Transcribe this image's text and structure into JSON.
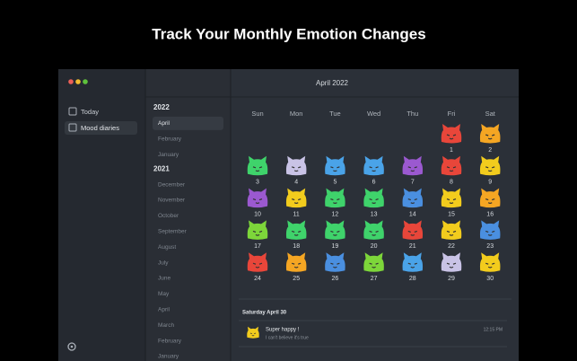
{
  "header": {
    "title": "Track Your Monthly Emotion Changes"
  },
  "sidebar": {
    "items": [
      "Today",
      "Mood diaries"
    ]
  },
  "months": {
    "groups": [
      {
        "year": "2022",
        "months": [
          "April",
          "February",
          "January"
        ]
      },
      {
        "year": "2021",
        "months": [
          "December",
          "November",
          "October",
          "September",
          "August",
          "July",
          "June",
          "May",
          "April",
          "March",
          "February",
          "January"
        ]
      }
    ]
  },
  "calendar": {
    "title": "April 2022",
    "weekdays": [
      "Sun",
      "Mon",
      "Tue",
      "Wed",
      "Thu",
      "Fri",
      "Sat"
    ],
    "days": [
      {
        "day": 1,
        "color": "#e8463a"
      },
      {
        "day": 2,
        "color": "#f5a623"
      },
      {
        "day": 3,
        "color": "#3fd36b"
      },
      {
        "day": 4,
        "color": "#c9c3e6"
      },
      {
        "day": 5,
        "color": "#4aa3e8"
      },
      {
        "day": 6,
        "color": "#4aa3e8"
      },
      {
        "day": 7,
        "color": "#9b59d0"
      },
      {
        "day": 8,
        "color": "#e8463a"
      },
      {
        "day": 9,
        "color": "#f2cc1d"
      },
      {
        "day": 10,
        "color": "#9b59d0"
      },
      {
        "day": 11,
        "color": "#f2cc1d"
      },
      {
        "day": 12,
        "color": "#3fd36b"
      },
      {
        "day": 13,
        "color": "#3fd36b"
      },
      {
        "day": 14,
        "color": "#4a8fe0"
      },
      {
        "day": 15,
        "color": "#f2cc1d"
      },
      {
        "day": 16,
        "color": "#f5a623"
      },
      {
        "day": 17,
        "color": "#7dd63a"
      },
      {
        "day": 18,
        "color": "#3fd36b"
      },
      {
        "day": 19,
        "color": "#3fd36b"
      },
      {
        "day": 20,
        "color": "#3fd36b"
      },
      {
        "day": 21,
        "color": "#e8463a"
      },
      {
        "day": 22,
        "color": "#f2cc1d"
      },
      {
        "day": 23,
        "color": "#4a8fe0"
      },
      {
        "day": 24,
        "color": "#e8463a"
      },
      {
        "day": 25,
        "color": "#f5a623"
      },
      {
        "day": 26,
        "color": "#4a8fe0"
      },
      {
        "day": 27,
        "color": "#7dd63a"
      },
      {
        "day": 28,
        "color": "#4aa3e8"
      },
      {
        "day": 29,
        "color": "#c9c3e6"
      },
      {
        "day": 30,
        "color": "#f2cc1d"
      }
    ]
  },
  "entries": {
    "date": "Saturday April 30",
    "items": [
      {
        "mood": "Super happy !",
        "note": "I can't believe it's true",
        "time": "12:15 PM",
        "color": "#f2cc1d"
      }
    ]
  }
}
